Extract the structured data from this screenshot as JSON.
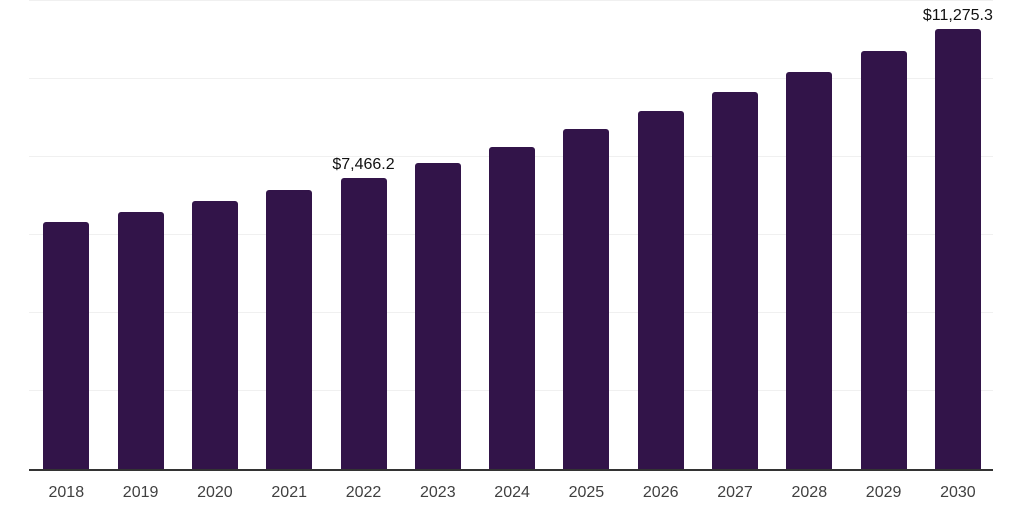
{
  "chart_data": {
    "type": "bar",
    "title": "",
    "xlabel": "",
    "ylabel": "",
    "categories": [
      "2018",
      "2019",
      "2020",
      "2021",
      "2022",
      "2023",
      "2024",
      "2025",
      "2026",
      "2027",
      "2028",
      "2029",
      "2030"
    ],
    "values": [
      6340,
      6595,
      6875,
      7160,
      7466.2,
      7840,
      8250,
      8700,
      9165,
      9655,
      10170,
      10700,
      11275.3
    ],
    "value_labels": [
      "",
      "",
      "",
      "",
      "$7,466.2",
      "",
      "",
      "",
      "",
      "",
      "",
      "",
      "$11,275.3"
    ],
    "labeled_points": [
      {
        "category": "2022",
        "value": 7466.2,
        "label": "$7,466.2"
      },
      {
        "category": "2030",
        "value": 11275.3,
        "label": "$11,275.3"
      }
    ],
    "ylim": [
      0,
      12000
    ],
    "gridlines": [
      2000,
      4000,
      6000,
      8000,
      10000,
      12000
    ],
    "grid": "horizontal-only",
    "legend": "none",
    "colors": {
      "bar": "#321449",
      "value_label": "#111111",
      "tick_label": "#404040",
      "axis_line": "#333333",
      "gridline": "#f0f0f0",
      "background": "#ffffff"
    }
  }
}
